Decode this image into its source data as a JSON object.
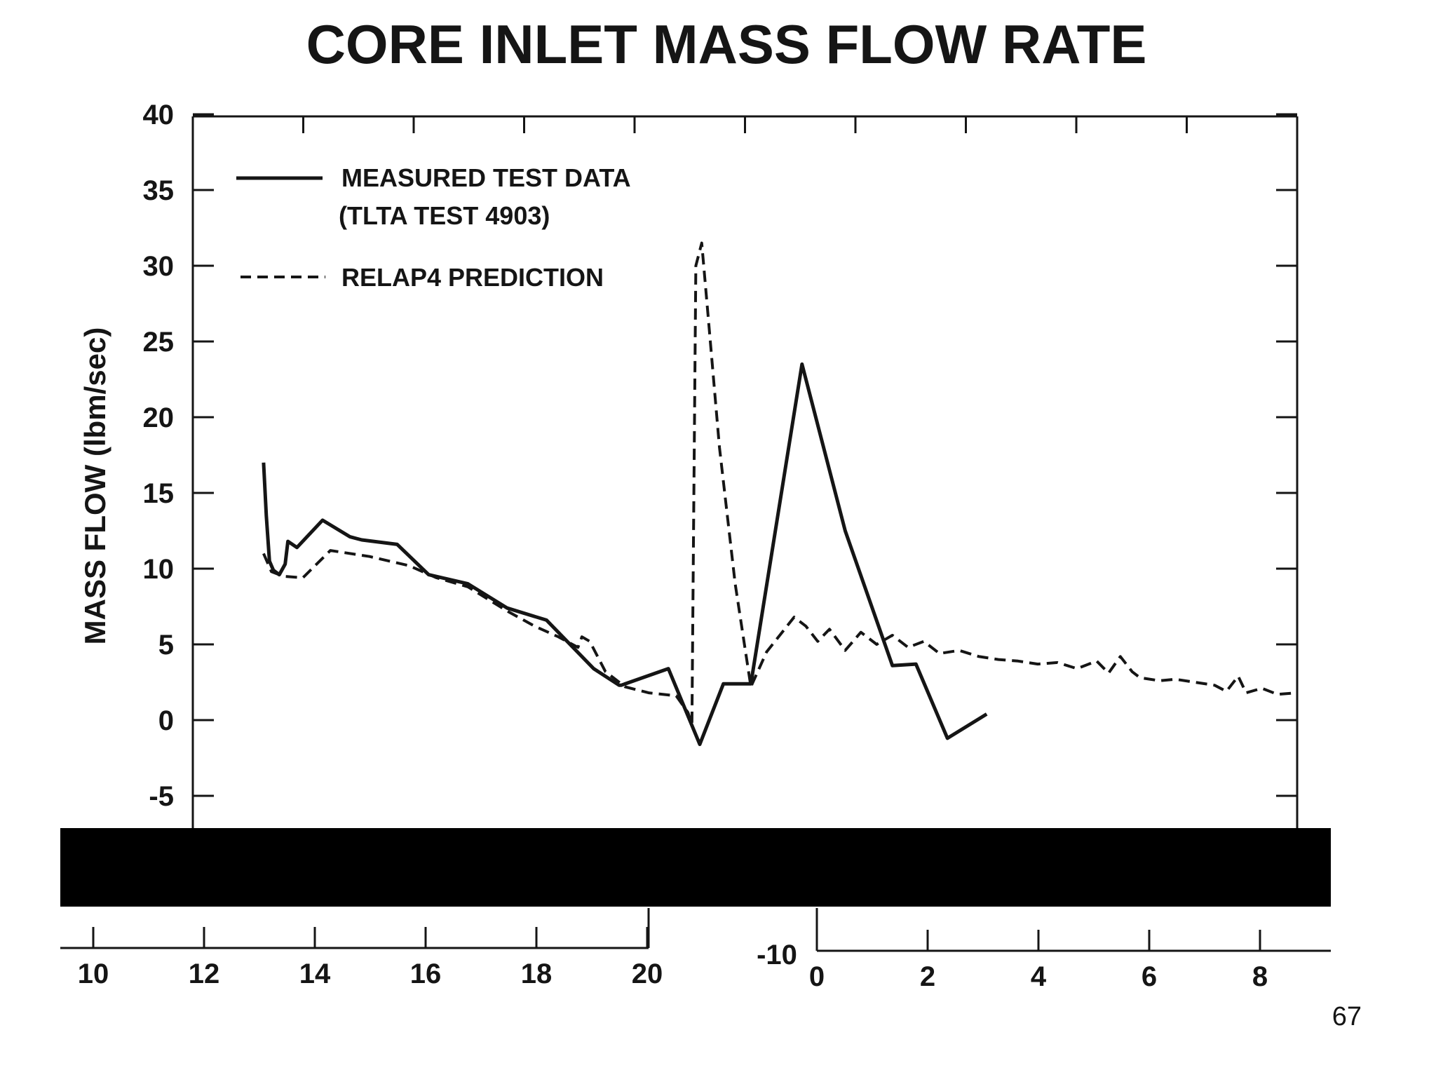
{
  "page_number": "67",
  "colors": {
    "ink": "#151515",
    "background": "#ffffff",
    "redaction": "#000000"
  },
  "chart_data": {
    "type": "line",
    "title": "CORE INLET MASS FLOW RATE",
    "ylabel": "MASS FLOW (lbm/sec)",
    "xlabel": "",
    "ylim": [
      -10,
      40
    ],
    "yticks": [
      40,
      35,
      30,
      25,
      20,
      15,
      10,
      5,
      0,
      -5
    ],
    "ytick_labels": [
      "40",
      "35",
      "30",
      "25",
      "20",
      "15",
      "10",
      "5",
      "0",
      "-5"
    ],
    "x_segments": [
      {
        "name": "segment-1",
        "xlim": [
          10,
          20
        ],
        "ticks": [
          10,
          12,
          14,
          16,
          18,
          20
        ],
        "tick_labels": [
          "10",
          "12",
          "14",
          "16",
          "18",
          "20"
        ]
      },
      {
        "name": "segment-2",
        "xlim": [
          0,
          9
        ],
        "ticks": [
          0,
          2,
          4,
          6,
          8
        ],
        "tick_labels": [
          "0",
          "2",
          "4",
          "6",
          "8"
        ]
      }
    ],
    "extra_ytick_label": "-10",
    "legend": {
      "placement": "top-left",
      "entries": [
        {
          "series": "measured",
          "label_lines": [
            "MEASURED TEST DATA",
            "(TLTA TEST 4903)"
          ],
          "style": "solid"
        },
        {
          "series": "relap4",
          "label_lines": [
            "RELAP4 PREDICTION"
          ],
          "style": "dashed"
        }
      ]
    },
    "series": [
      {
        "name": "measured",
        "style": "solid",
        "points": [
          [
            11.8,
            17
          ],
          [
            11.87,
            13.5
          ],
          [
            11.95,
            10.5
          ],
          [
            12.05,
            9.9
          ],
          [
            12.2,
            9.6
          ],
          [
            12.35,
            10.3
          ],
          [
            12.42,
            11.8
          ],
          [
            12.65,
            11.4
          ],
          [
            13.3,
            13.2
          ],
          [
            14,
            12.1
          ],
          [
            14.3,
            11.9
          ],
          [
            15.2,
            11.6
          ],
          [
            16,
            9.6
          ],
          [
            17,
            9
          ],
          [
            18,
            7.4
          ],
          [
            19,
            6.6
          ],
          [
            20.2,
            3.4
          ],
          [
            20.85,
            2.3
          ],
          [
            20.9,
            2.3
          ],
          [
            22.1,
            3.4
          ],
          [
            22.9,
            -1.6
          ],
          [
            23.5,
            2.4
          ],
          [
            24.2,
            2.4
          ],
          [
            25.5,
            23.5
          ],
          [
            26.6,
            12.5
          ],
          [
            27.8,
            3.6
          ],
          [
            28.4,
            3.7
          ],
          [
            29.2,
            -1.2
          ],
          [
            30.2,
            0.4
          ]
        ]
      },
      {
        "name": "relap4",
        "style": "dashed",
        "points": [
          [
            11.8,
            11
          ],
          [
            12.0,
            9.8
          ],
          [
            12.3,
            9.5
          ],
          [
            12.8,
            9.4
          ],
          [
            13.5,
            11.2
          ],
          [
            14.5,
            10.8
          ],
          [
            15.5,
            10.2
          ],
          [
            16.2,
            9.4
          ],
          [
            17,
            8.8
          ],
          [
            18,
            7.2
          ],
          [
            18.7,
            6.2
          ],
          [
            19.3,
            5.5
          ],
          [
            19.8,
            4.8
          ],
          [
            19.9,
            5.5
          ],
          [
            20.1,
            5.2
          ],
          [
            20.5,
            3.2
          ],
          [
            21.0,
            2.2
          ],
          [
            21.6,
            1.8
          ],
          [
            22.3,
            1.6
          ],
          [
            22.6,
            0.5
          ],
          [
            22.7,
            -0.3
          ],
          [
            22.75,
            15
          ],
          [
            22.8,
            30
          ],
          [
            22.95,
            31.5
          ],
          [
            23.1,
            27
          ],
          [
            23.4,
            18
          ],
          [
            23.8,
            9
          ],
          [
            24.2,
            2.2
          ],
          [
            24.6,
            4.5
          ],
          [
            25.3,
            6.8
          ],
          [
            25.6,
            6.2
          ],
          [
            25.9,
            5.2
          ],
          [
            26.2,
            6.0
          ],
          [
            26.6,
            4.6
          ],
          [
            27.0,
            5.8
          ],
          [
            27.4,
            5.0
          ],
          [
            27.8,
            5.6
          ],
          [
            28.2,
            4.8
          ],
          [
            28.6,
            5.2
          ],
          [
            29.0,
            4.4
          ],
          [
            29.5,
            4.6
          ],
          [
            30.0,
            4.2
          ],
          [
            30.5,
            4.0
          ],
          [
            31.0,
            3.9
          ],
          [
            31.5,
            3.7
          ],
          [
            32.0,
            3.8
          ],
          [
            32.5,
            3.4
          ],
          [
            33.0,
            3.9
          ],
          [
            33.3,
            3.1
          ],
          [
            33.6,
            4.2
          ],
          [
            33.9,
            3.2
          ],
          [
            34.1,
            2.8
          ],
          [
            34.6,
            2.6
          ],
          [
            35.0,
            2.7
          ],
          [
            35.5,
            2.5
          ],
          [
            36.0,
            2.3
          ],
          [
            36.3,
            1.9
          ],
          [
            36.6,
            2.9
          ],
          [
            36.8,
            1.8
          ],
          [
            37.2,
            2.1
          ],
          [
            37.6,
            1.7
          ],
          [
            38.1,
            1.8
          ]
        ]
      }
    ]
  }
}
